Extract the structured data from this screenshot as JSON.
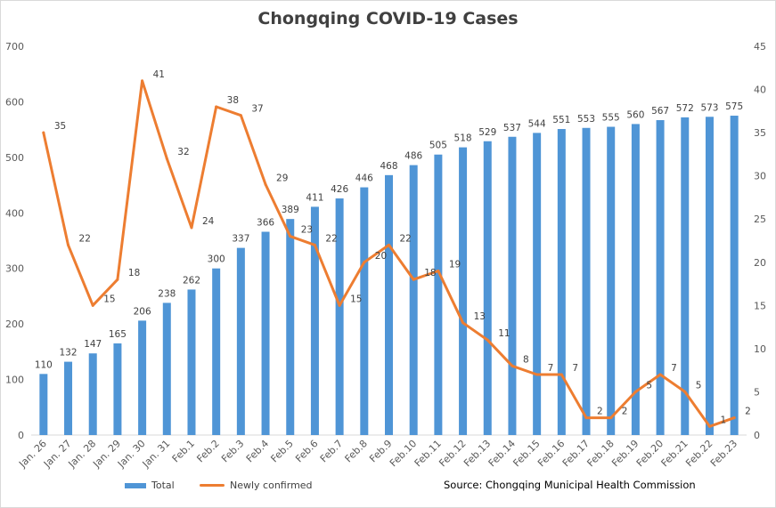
{
  "chart_data": {
    "type": "bar+line",
    "title": "Chongqing  COVID-19 Cases",
    "categories": [
      "Jan. 26",
      "Jan. 27",
      "Jan. 28",
      "Jan. 29",
      "Jan. 30",
      "Jan. 31",
      "Feb.1",
      "Feb.2",
      "Feb.3",
      "Feb.4",
      "Feb.5",
      "Feb.6",
      "Feb.7",
      "Feb.8",
      "Feb.9",
      "Feb.10",
      "Feb.11",
      "Feb.12",
      "Feb.13",
      "Feb.14",
      "Feb.15",
      "Feb.16",
      "Feb.17",
      "Feb.18",
      "Feb.19",
      "Feb.20",
      "Feb.21",
      "Feb.22",
      "Feb.23"
    ],
    "series": [
      {
        "name": "Total",
        "type": "bar",
        "axis": "left",
        "color": "#4f95d6",
        "values": [
          110,
          132,
          147,
          165,
          206,
          238,
          262,
          300,
          337,
          366,
          389,
          411,
          426,
          446,
          468,
          486,
          505,
          518,
          529,
          537,
          544,
          551,
          553,
          555,
          560,
          567,
          572,
          573,
          575
        ]
      },
      {
        "name": "Newly confirmed",
        "type": "line",
        "axis": "right",
        "color": "#ed7d31",
        "values": [
          35,
          22,
          15,
          18,
          41,
          32,
          24,
          38,
          37,
          29,
          23,
          22,
          15,
          20,
          22,
          18,
          19,
          13,
          11,
          8,
          7,
          7,
          2,
          2,
          5,
          7,
          5,
          1,
          2
        ]
      }
    ],
    "yleft": {
      "min": 0,
      "max": 700,
      "ticks": [
        0,
        100,
        200,
        300,
        400,
        500,
        600,
        700
      ]
    },
    "yright": {
      "min": 0,
      "max": 45,
      "ticks": [
        0,
        5,
        10,
        15,
        20,
        25,
        30,
        35,
        40,
        45
      ]
    },
    "legend_position": "bottom-left",
    "grid": false,
    "source": "Source: Chongqing Municipal Health Commission"
  }
}
